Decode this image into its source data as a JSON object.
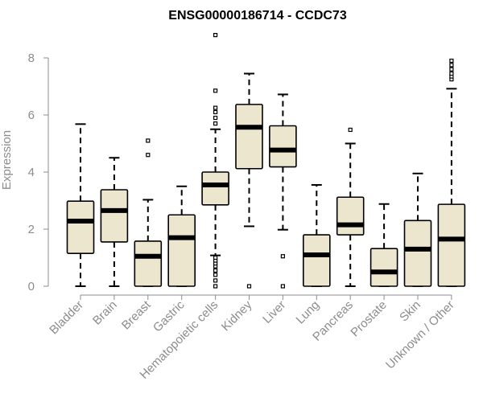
{
  "chart_data": {
    "type": "boxplot",
    "title": "ENSG00000186714 - CCDC73",
    "xlabel": "",
    "ylabel": "Expression",
    "ylim": [
      0,
      8
    ],
    "yticks": [
      0,
      2,
      4,
      6,
      8
    ],
    "grid": false,
    "box_color": "#ede6cf",
    "outline_color": "#000000",
    "median_color": "#000000",
    "axis_color": "#8c8c8c",
    "categories": [
      "Bladder",
      "Brain",
      "Breast",
      "Gastric",
      "Hematopoietic cells",
      "Kidney",
      "Liver",
      "Lung",
      "Pancreas",
      "Prostate",
      "Skin",
      "Unknown / Other"
    ],
    "boxes": [
      {
        "name": "Bladder",
        "whisker_low": 0.0,
        "q1": 1.15,
        "median": 2.28,
        "q3": 2.98,
        "whisker_high": 5.68,
        "outliers": []
      },
      {
        "name": "Brain",
        "whisker_low": 0.0,
        "q1": 1.55,
        "median": 2.65,
        "q3": 3.38,
        "whisker_high": 4.5,
        "outliers": []
      },
      {
        "name": "Breast",
        "whisker_low": 0.0,
        "q1": 0.0,
        "median": 1.05,
        "q3": 1.58,
        "whisker_high": 3.03,
        "outliers": [
          4.6,
          5.1
        ]
      },
      {
        "name": "Gastric",
        "whisker_low": 0.0,
        "q1": 0.0,
        "median": 1.7,
        "q3": 2.5,
        "whisker_high": 3.5,
        "outliers": []
      },
      {
        "name": "Hematopoietic cells",
        "whisker_low": 1.08,
        "q1": 2.85,
        "median": 3.55,
        "q3": 4.0,
        "whisker_high": 5.5,
        "outliers": [
          0.0,
          0.2,
          0.4,
          0.55,
          0.7,
          0.8,
          0.9,
          1.0,
          5.7,
          5.9,
          6.1,
          6.25,
          6.85,
          8.8
        ]
      },
      {
        "name": "Kidney",
        "whisker_low": 2.1,
        "q1": 4.12,
        "median": 5.57,
        "q3": 6.37,
        "whisker_high": 7.45,
        "outliers": [
          0.0
        ]
      },
      {
        "name": "Liver",
        "whisker_low": 1.98,
        "q1": 4.18,
        "median": 4.77,
        "q3": 5.62,
        "whisker_high": 6.72,
        "outliers": [
          0.0,
          1.05
        ]
      },
      {
        "name": "Lung",
        "whisker_low": 0.0,
        "q1": 0.0,
        "median": 1.1,
        "q3": 1.8,
        "whisker_high": 3.55,
        "outliers": []
      },
      {
        "name": "Pancreas",
        "whisker_low": 0.0,
        "q1": 1.8,
        "median": 2.15,
        "q3": 3.12,
        "whisker_high": 5.0,
        "outliers": [
          5.48
        ]
      },
      {
        "name": "Prostate",
        "whisker_low": 0.0,
        "q1": 0.0,
        "median": 0.5,
        "q3": 1.32,
        "whisker_high": 2.88,
        "outliers": []
      },
      {
        "name": "Skin",
        "whisker_low": 0.0,
        "q1": 0.0,
        "median": 1.3,
        "q3": 2.3,
        "whisker_high": 3.95,
        "outliers": []
      },
      {
        "name": "Unknown / Other",
        "whisker_low": 0.0,
        "q1": 0.0,
        "median": 1.65,
        "q3": 2.87,
        "whisker_high": 6.92,
        "outliers": [
          7.25,
          7.35,
          7.45,
          7.6,
          7.75,
          7.9
        ]
      }
    ]
  }
}
